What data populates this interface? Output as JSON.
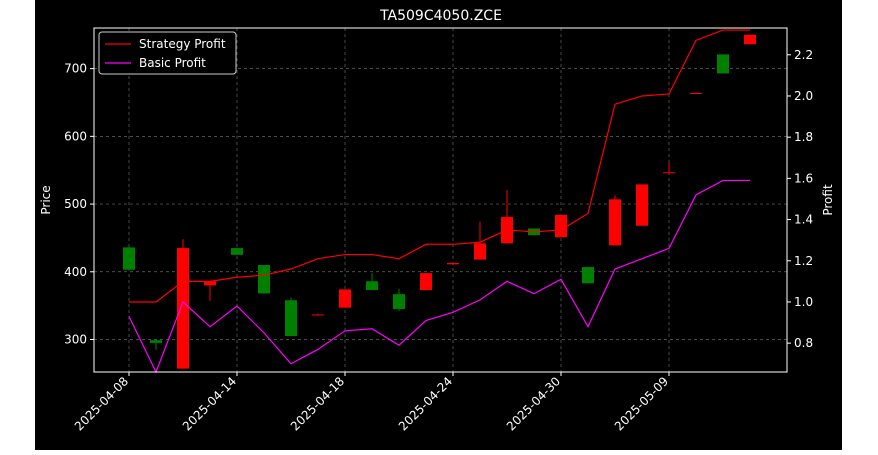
{
  "chart_data": {
    "type": "candlestick",
    "title": "TA509C4050.ZCE",
    "ylabel_left": "Price",
    "ylabel_right": "Profit",
    "xlabel": "",
    "grid": true,
    "legend_position": "upper-left",
    "background": "#000000",
    "colors": {
      "up": "#ff0000",
      "down": "#008000",
      "strategy": "#ff0000",
      "basic": "#ff00ff",
      "grid": "#666666",
      "axis": "#ffffff"
    },
    "price_ylim": [
      252,
      760
    ],
    "price_ticks": [
      300,
      400,
      500,
      600,
      700
    ],
    "profit_ylim": [
      0.66,
      2.33
    ],
    "profit_ticks": [
      "0.8",
      "1.0",
      "1.2",
      "1.4",
      "1.6",
      "1.8",
      "2.0",
      "2.2"
    ],
    "x_tick_labels": [
      "2025-04-08",
      "2025-04-14",
      "2025-04-18",
      "2025-04-24",
      "2025-04-30",
      "2025-05-09"
    ],
    "x_tick_index": [
      0,
      4,
      8,
      12,
      16,
      20
    ],
    "candles": [
      {
        "o": 436,
        "h": 438,
        "l": 403,
        "c": 403
      },
      {
        "o": 299,
        "h": 300,
        "l": 285,
        "c": 295
      },
      {
        "o": 257,
        "h": 448,
        "l": 257,
        "c": 435
      },
      {
        "o": 380,
        "h": 387,
        "l": 357,
        "c": 386
      },
      {
        "o": 435,
        "h": 435,
        "l": 425,
        "c": 425
      },
      {
        "o": 410,
        "h": 410,
        "l": 368,
        "c": 368
      },
      {
        "o": 358,
        "h": 362,
        "l": 305,
        "c": 305
      },
      {
        "o": 337,
        "h": 338,
        "l": 336,
        "c": 337
      },
      {
        "o": 347,
        "h": 374,
        "l": 347,
        "c": 374
      },
      {
        "o": 386,
        "h": 398,
        "l": 373,
        "c": 373
      },
      {
        "o": 367,
        "h": 375,
        "l": 342,
        "c": 345
      },
      {
        "o": 373,
        "h": 398,
        "l": 373,
        "c": 398
      },
      {
        "o": 411,
        "h": 413,
        "l": 411,
        "c": 413
      },
      {
        "o": 418,
        "h": 474,
        "l": 418,
        "c": 442
      },
      {
        "o": 442,
        "h": 521,
        "l": 442,
        "c": 481
      },
      {
        "o": 464,
        "h": 464,
        "l": 454,
        "c": 454
      },
      {
        "o": 451,
        "h": 484,
        "l": 451,
        "c": 484
      },
      {
        "o": 407,
        "h": 407,
        "l": 383,
        "c": 383
      },
      {
        "o": 439,
        "h": 513,
        "l": 439,
        "c": 507
      },
      {
        "o": 468,
        "h": 529,
        "l": 468,
        "c": 529
      },
      {
        "o": 547,
        "h": 561,
        "l": 544,
        "c": 547
      },
      {
        "o": 664,
        "h": 665,
        "l": 663,
        "c": 664
      },
      {
        "o": 721,
        "h": 721,
        "l": 693,
        "c": 693
      },
      {
        "o": 736,
        "h": 750,
        "l": 736,
        "c": 750
      }
    ],
    "series": [
      {
        "name": "Strategy Profit",
        "values": [
          1.0,
          1.0,
          1.1,
          1.1,
          1.12,
          1.13,
          1.16,
          1.21,
          1.23,
          1.23,
          1.21,
          1.28,
          1.28,
          1.29,
          1.35,
          1.34,
          1.35,
          1.43,
          1.96,
          2.0,
          2.01,
          2.27,
          2.32,
          2.32
        ]
      },
      {
        "name": "Basic Profit",
        "values": [
          0.93,
          0.66,
          1.0,
          0.88,
          0.98,
          0.85,
          0.7,
          0.77,
          0.86,
          0.87,
          0.79,
          0.91,
          0.95,
          1.01,
          1.1,
          1.04,
          1.11,
          0.88,
          1.16,
          1.21,
          1.26,
          1.52,
          1.59,
          1.59
        ]
      }
    ]
  }
}
